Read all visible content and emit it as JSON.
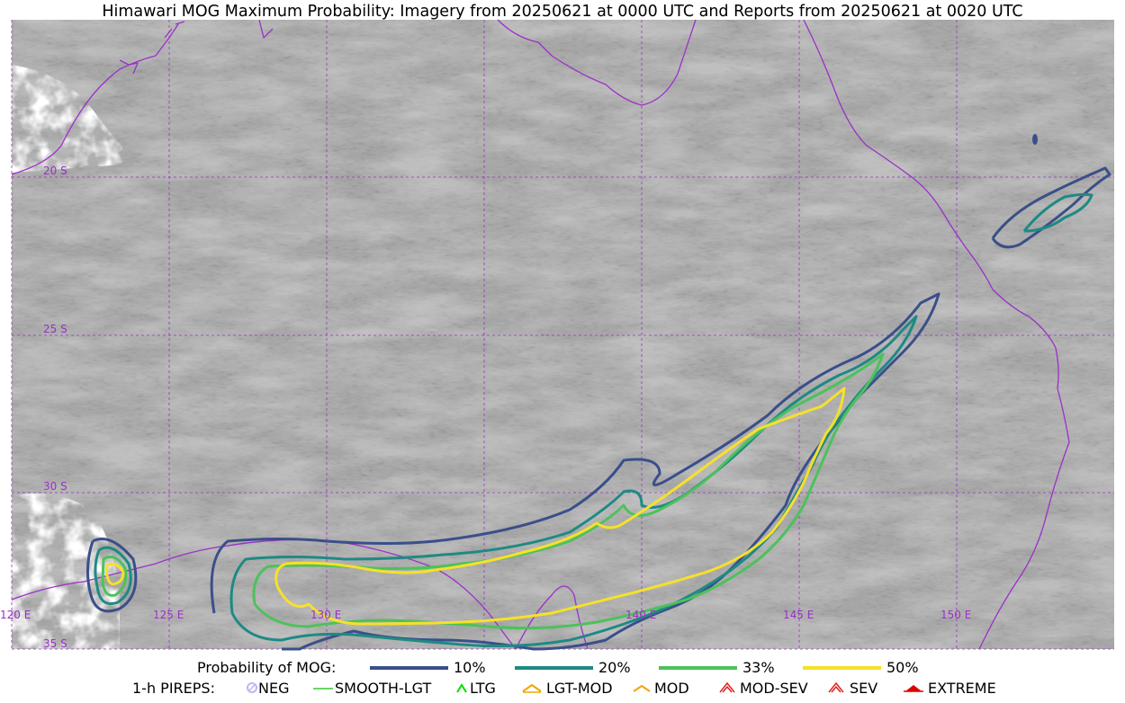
{
  "title": "Himawari MOG Maximum Probability: Imagery from 20250621 at 0000 UTC and Reports from 20250621 at 0020 UTC",
  "map": {
    "lat_labels": [
      "20 S",
      "25 S",
      "30 S",
      "35 S"
    ],
    "lon_labels": [
      "120 E",
      "125 E",
      "130 E",
      "140 E",
      "145 E",
      "150 E"
    ],
    "colors": {
      "graticule": "#9b30c8",
      "coastline": "#9b30c8",
      "p10": "#3a4f8a",
      "p20": "#1e8a83",
      "p33": "#4cc25a",
      "p50": "#f5e12a"
    }
  },
  "legend": {
    "prob_label": "Probability of MOG:",
    "levels": [
      {
        "label": "10%",
        "color": "#3a4f8a"
      },
      {
        "label": "20%",
        "color": "#1e8a83"
      },
      {
        "label": "33%",
        "color": "#4cc25a"
      },
      {
        "label": "50%",
        "color": "#f5e12a"
      }
    ],
    "pirep_label": "1-h PIREPS:",
    "pireps": [
      {
        "label": "NEG",
        "icon": "neg-circle-icon",
        "color": "#b9b9f0"
      },
      {
        "label": "SMOOTH-LGT",
        "icon": "smooth-line-icon",
        "color": "#33cc33"
      },
      {
        "label": "LTG",
        "icon": "ltg-caret-icon",
        "color": "#00dd00"
      },
      {
        "label": "LGT-MOD",
        "icon": "lgt-mod-hat-icon",
        "color": "#f0a500"
      },
      {
        "label": "MOD",
        "icon": "mod-hat-icon",
        "color": "#f0a500"
      },
      {
        "label": "MOD-SEV",
        "icon": "mod-sev-hat-icon",
        "color": "#e02020"
      },
      {
        "label": "SEV",
        "icon": "sev-hat-icon",
        "color": "#e02020"
      },
      {
        "label": "EXTREME",
        "icon": "extreme-hat-icon",
        "color": "#e00000"
      }
    ]
  }
}
